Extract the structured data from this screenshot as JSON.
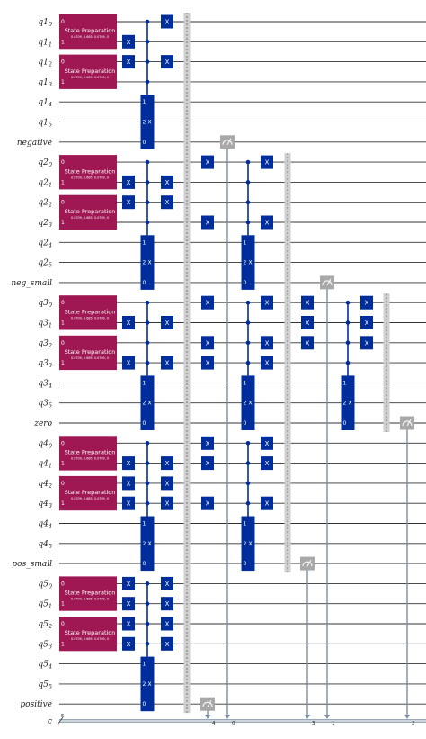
{
  "wires": [
    {
      "b": "q1",
      "s": "0"
    },
    {
      "b": "q1",
      "s": "1"
    },
    {
      "b": "q1",
      "s": "2"
    },
    {
      "b": "q1",
      "s": "3"
    },
    {
      "b": "q1",
      "s": "4"
    },
    {
      "b": "q1",
      "s": "5"
    },
    {
      "b": "negative",
      "s": ""
    },
    {
      "b": "q2",
      "s": "0"
    },
    {
      "b": "q2",
      "s": "1"
    },
    {
      "b": "q2",
      "s": "2"
    },
    {
      "b": "q2",
      "s": "3"
    },
    {
      "b": "q2",
      "s": "4"
    },
    {
      "b": "q2",
      "s": "5"
    },
    {
      "b": "neg_small",
      "s": ""
    },
    {
      "b": "q3",
      "s": "0"
    },
    {
      "b": "q3",
      "s": "1"
    },
    {
      "b": "q3",
      "s": "2"
    },
    {
      "b": "q3",
      "s": "3"
    },
    {
      "b": "q3",
      "s": "4"
    },
    {
      "b": "q3",
      "s": "5"
    },
    {
      "b": "zero",
      "s": ""
    },
    {
      "b": "q4",
      "s": "0"
    },
    {
      "b": "q4",
      "s": "1"
    },
    {
      "b": "q4",
      "s": "2"
    },
    {
      "b": "q4",
      "s": "3"
    },
    {
      "b": "q4",
      "s": "4"
    },
    {
      "b": "q4",
      "s": "5"
    },
    {
      "b": "pos_small",
      "s": ""
    },
    {
      "b": "q5",
      "s": "0"
    },
    {
      "b": "q5",
      "s": "1"
    },
    {
      "b": "q5",
      "s": "2"
    },
    {
      "b": "q5",
      "s": "3"
    },
    {
      "b": "q5",
      "s": "4"
    },
    {
      "b": "q5",
      "s": "5"
    },
    {
      "b": "positive",
      "s": ""
    }
  ],
  "classical_register": {
    "name": "c",
    "size": "5"
  },
  "state_prep": {
    "label": "State Preparation",
    "params": "0.0709, 0.685, 0.0709, 0",
    "idx0": "0",
    "idx1": "1"
  },
  "x_label": "X",
  "mcx": {
    "idx1": "1",
    "idx2": "2",
    "idx0": "0",
    "label": "X"
  },
  "measure_bits": [
    "4",
    "0",
    "3",
    "1",
    "2"
  ]
}
